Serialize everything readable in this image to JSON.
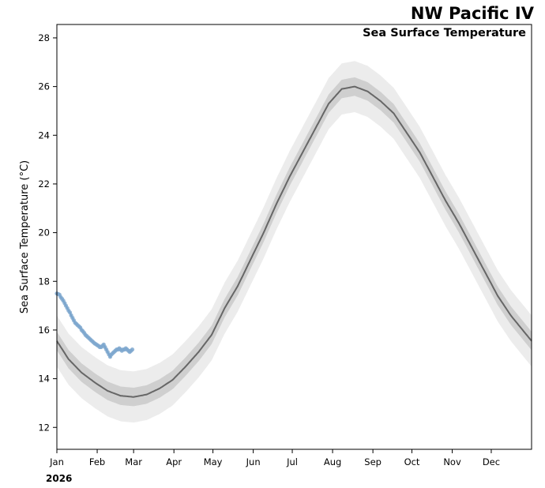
{
  "chart_data": {
    "type": "line",
    "title": "NW Pacific IV",
    "subtitle": "Sea Surface Temperature",
    "ylabel": "Sea Surface Temperature ($^\\circ$C)",
    "ylabel_display": "Sea Surface Temperature (°C)",
    "xlabel": "",
    "year_label": "2026",
    "ylim": [
      11.1,
      28.55
    ],
    "xlim": [
      1,
      366
    ],
    "yticks": [
      12,
      14,
      16,
      18,
      20,
      22,
      24,
      26,
      28
    ],
    "xticks": [
      {
        "label": "Jan",
        "day": 1
      },
      {
        "label": "Feb",
        "day": 32
      },
      {
        "label": "Mar",
        "day": 60
      },
      {
        "label": "Apr",
        "day": 91
      },
      {
        "label": "May",
        "day": 121
      },
      {
        "label": "Jun",
        "day": 152
      },
      {
        "label": "Jul",
        "day": 182
      },
      {
        "label": "Aug",
        "day": 213
      },
      {
        "label": "Sep",
        "day": 244
      },
      {
        "label": "Oct",
        "day": 274
      },
      {
        "label": "Nov",
        "day": 305
      },
      {
        "label": "Dec",
        "day": 335
      }
    ],
    "climatology": {
      "x": [
        1,
        10,
        20,
        30,
        40,
        50,
        60,
        70,
        80,
        90,
        100,
        110,
        120,
        130,
        140,
        150,
        160,
        170,
        180,
        190,
        200,
        210,
        220,
        230,
        240,
        250,
        260,
        270,
        280,
        290,
        300,
        310,
        320,
        330,
        340,
        350,
        366
      ],
      "mean": [
        15.55,
        14.8,
        14.25,
        13.85,
        13.5,
        13.3,
        13.25,
        13.35,
        13.6,
        13.95,
        14.5,
        15.1,
        15.8,
        16.9,
        17.8,
        18.9,
        20.0,
        21.2,
        22.3,
        23.3,
        24.3,
        25.3,
        25.9,
        26.0,
        25.8,
        25.4,
        24.9,
        24.1,
        23.3,
        22.3,
        21.3,
        20.4,
        19.4,
        18.4,
        17.4,
        16.6,
        15.55
      ],
      "band_inner_half_width": 0.38,
      "band_outer_half_width": 1.05
    },
    "series": [
      {
        "name": "2026",
        "color": "#3a78b0",
        "x": [
          1,
          2,
          3,
          4,
          5,
          6,
          7,
          8,
          9,
          10,
          11,
          12,
          13,
          14,
          15,
          16,
          17,
          18,
          19,
          20,
          21,
          22,
          23,
          24,
          25,
          26,
          27,
          28,
          29,
          30,
          31,
          32,
          33,
          34,
          35,
          36,
          37,
          38,
          39,
          40,
          41,
          42,
          43,
          44,
          45,
          46,
          47,
          48,
          49,
          50,
          51,
          52,
          53,
          54,
          55,
          56,
          57,
          58,
          59
        ],
        "values": [
          17.5,
          17.48,
          17.45,
          17.35,
          17.28,
          17.2,
          17.1,
          17.0,
          16.9,
          16.8,
          16.72,
          16.6,
          16.5,
          16.4,
          16.3,
          16.25,
          16.2,
          16.15,
          16.1,
          16.0,
          15.95,
          15.88,
          15.8,
          15.75,
          15.7,
          15.65,
          15.6,
          15.55,
          15.5,
          15.45,
          15.42,
          15.38,
          15.35,
          15.3,
          15.3,
          15.35,
          15.4,
          15.3,
          15.2,
          15.1,
          15.0,
          14.9,
          15.0,
          15.05,
          15.1,
          15.15,
          15.2,
          15.2,
          15.25,
          15.2,
          15.15,
          15.2,
          15.2,
          15.25,
          15.2,
          15.15,
          15.1,
          15.15,
          15.2
        ]
      }
    ]
  }
}
